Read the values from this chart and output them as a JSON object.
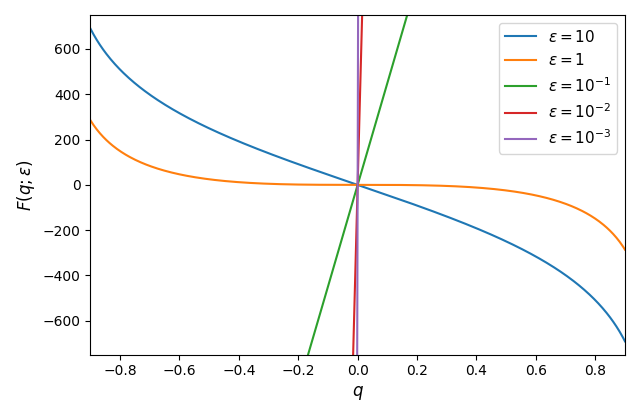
{
  "q_min": -0.9,
  "q_max": 0.9,
  "n_points": 500,
  "epsilons": [
    10,
    1,
    0.1,
    0.01,
    0.001
  ],
  "colors": [
    "#1f77b4",
    "#ff7f0e",
    "#2ca02c",
    "#d62728",
    "#9467bd"
  ],
  "labels": [
    "$\\varepsilon=10$",
    "$\\varepsilon=1$",
    "$\\varepsilon=10^{-1}$",
    "$\\varepsilon=10^{-2}$",
    "$\\varepsilon=10^{-3}$"
  ],
  "xlabel": "$q$",
  "ylabel": "$F(q; \\varepsilon)$",
  "scale": 500,
  "ylim": [
    -750,
    750
  ],
  "xlim": [
    -0.9,
    0.9
  ]
}
